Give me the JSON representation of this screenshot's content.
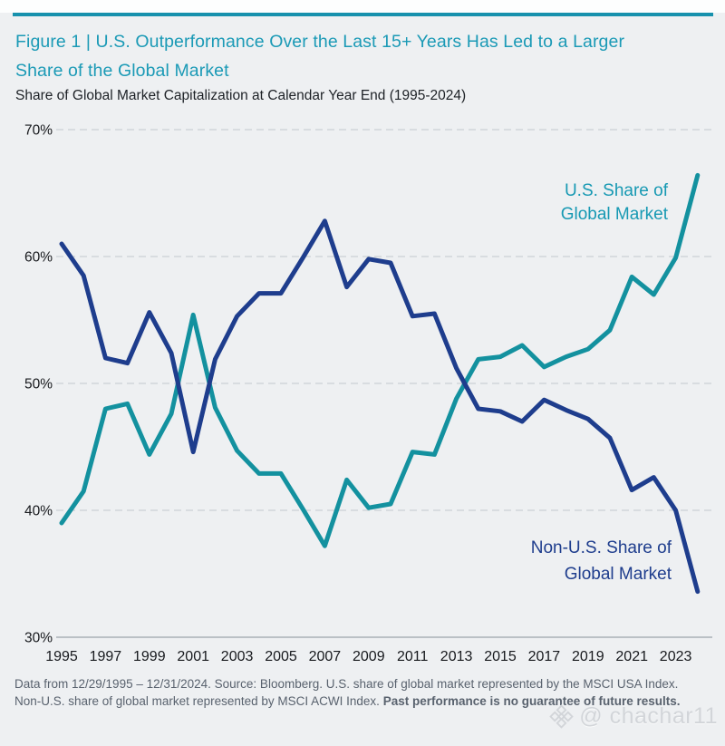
{
  "header": {
    "title_lines": [
      "Figure 1 | U.S. Outperformance Over the Last 15+ Years Has Led to a Larger",
      "Share of the Global Market"
    ],
    "subtitle": "Share of Global Market Capitalization at Calendar Year End (1995-2024)"
  },
  "chart_data": {
    "type": "line",
    "title": "Share of Global Market Capitalization at Calendar Year End (1995-2024)",
    "x": [
      1995,
      1996,
      1997,
      1998,
      1999,
      2000,
      2001,
      2002,
      2003,
      2004,
      2005,
      2006,
      2007,
      2008,
      2009,
      2010,
      2011,
      2012,
      2013,
      2014,
      2015,
      2016,
      2017,
      2018,
      2019,
      2020,
      2021,
      2022,
      2023,
      2024
    ],
    "series": [
      {
        "name": "U.S. Share of Global Market",
        "color": "#13919f",
        "label_color": "#1799b3",
        "label_lines": [
          "U.S. Share of",
          "Global Market"
        ],
        "values": [
          39.0,
          41.5,
          48.0,
          48.4,
          44.4,
          47.6,
          55.4,
          48.1,
          44.7,
          42.9,
          42.9,
          40.1,
          37.2,
          42.4,
          40.2,
          40.5,
          44.6,
          44.4,
          48.8,
          51.9,
          52.1,
          53.0,
          51.3,
          52.1,
          52.7,
          54.2,
          58.4,
          57.0,
          59.9,
          66.4
        ]
      },
      {
        "name": "Non-U.S. Share of Global Market",
        "color": "#1e3d8d",
        "label_color": "#1e3d8d",
        "label_lines": [
          "Non-U.S. Share of",
          "Global Market"
        ],
        "values": [
          61.0,
          58.5,
          52.0,
          51.6,
          55.6,
          52.4,
          44.6,
          51.9,
          55.3,
          57.1,
          57.1,
          59.9,
          62.8,
          57.6,
          59.8,
          59.5,
          55.3,
          55.5,
          51.2,
          48.0,
          47.8,
          47.0,
          48.7,
          47.9,
          47.2,
          45.7,
          41.6,
          42.6,
          40.0,
          33.6
        ]
      }
    ],
    "ylim": [
      30,
      70
    ],
    "ytick_values": [
      70,
      60,
      50,
      40,
      30
    ],
    "ytick_labels": [
      "70%",
      "60%",
      "50%",
      "40%",
      "30%"
    ],
    "xtick_labels": [
      "1995",
      "1997",
      "1999",
      "2001",
      "2003",
      "2005",
      "2007",
      "2009",
      "2011",
      "2013",
      "2015",
      "2017",
      "2019",
      "2021",
      "2023"
    ],
    "grid": "horizontal-dashed",
    "legend_position": "inline-line-labels"
  },
  "footer": {
    "text_normal": "Data from 12/29/1995 – 12/31/2024. Source: Bloomberg. U.S. share of global market represented by the MSCI USA Index. Non-U.S. share of global market represented by MSCI ACWI Index. ",
    "text_bold": "Past performance is no guarantee of future results."
  },
  "watermark": {
    "icon": "diamond-logo",
    "handle": "@ chachar11"
  },
  "colors": {
    "accent_teal": "#1791ad",
    "title_teal": "#1b9ab6",
    "navy": "#1e3d8d",
    "teal_line": "#13919f",
    "background": "#eef0f2",
    "gridline": "#cbd0d5",
    "axis_line": "#a9b0b6"
  }
}
